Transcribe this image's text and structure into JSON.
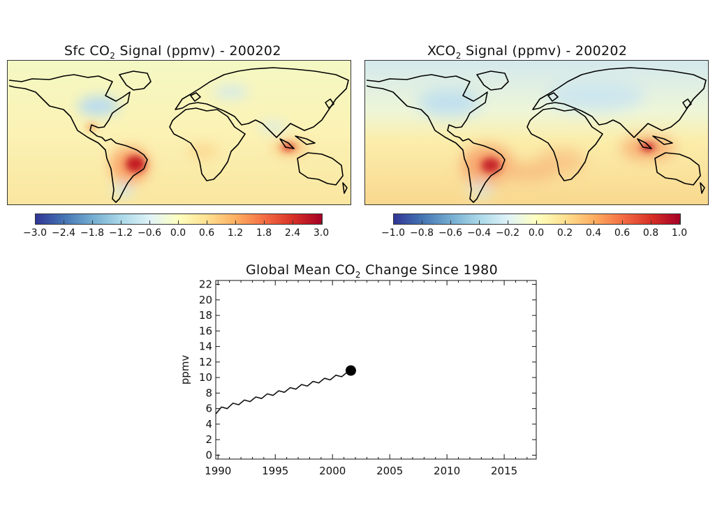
{
  "panels": {
    "left": {
      "title_parts": [
        "Sfc CO",
        "2",
        " Signal (ppmv) - 200202"
      ],
      "colorbar_ticks": [
        "-3.0",
        "-2.4",
        "-1.8",
        "-1.2",
        "-0.6",
        "0.0",
        "0.6",
        "1.2",
        "1.8",
        "2.4",
        "3.0"
      ]
    },
    "right": {
      "title_parts": [
        "XCO",
        "2",
        " Signal (ppmv) - 200202"
      ],
      "colorbar_ticks": [
        "-1.0",
        "-0.8",
        "-0.6",
        "-0.4",
        "-0.2",
        "0.0",
        "0.2",
        "0.4",
        "0.6",
        "0.8",
        "1.0"
      ]
    }
  },
  "colors": {
    "diverging": [
      "#313695",
      "#4575b4",
      "#74add1",
      "#abd9e9",
      "#e0f3f8",
      "#ffffbf",
      "#fee090",
      "#fdae61",
      "#f46d43",
      "#d73027",
      "#a50026"
    ]
  },
  "chart_data": {
    "type": "line",
    "title_parts": [
      "Global Mean CO",
      "2",
      " Change Since 1980"
    ],
    "ylabel": "ppmv",
    "xlim": [
      1989.8,
      2017.8
    ],
    "ylim": [
      -0.5,
      22.5
    ],
    "xticks": [
      "1990",
      "1995",
      "2000",
      "2005",
      "2010",
      "2015"
    ],
    "yticks": [
      "0",
      "2",
      "4",
      "6",
      "8",
      "10",
      "12",
      "14",
      "16",
      "18",
      "20",
      "22"
    ],
    "series": [
      {
        "x": [
          1989.8,
          1990.3,
          1990.8,
          1991.3,
          1991.8,
          1992.3,
          1992.8,
          1993.3,
          1993.8,
          1994.3,
          1994.8,
          1995.3,
          1995.8,
          1996.3,
          1996.8,
          1997.3,
          1997.8,
          1998.3,
          1998.8,
          1999.3,
          1999.8,
          2000.3,
          2000.8,
          2001.3,
          2001.6
        ],
        "y": [
          5.3,
          6.2,
          6.0,
          6.7,
          6.5,
          7.1,
          6.9,
          7.5,
          7.3,
          7.9,
          7.7,
          8.3,
          8.1,
          8.7,
          8.5,
          9.1,
          8.9,
          9.5,
          9.3,
          9.9,
          9.7,
          10.3,
          10.1,
          10.7,
          10.9
        ]
      }
    ],
    "current_point": {
      "x": 2001.6,
      "y": 10.9
    }
  }
}
